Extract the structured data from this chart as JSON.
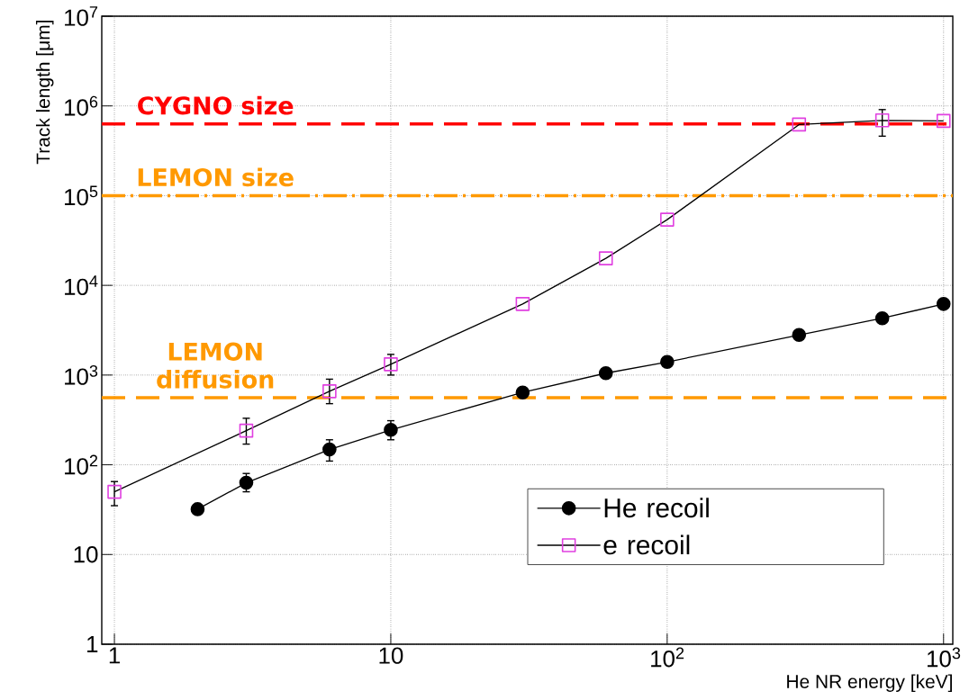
{
  "chart_data": {
    "type": "line",
    "xlabel": "He NR energy [keV]",
    "ylabel": "Track length [μm]",
    "log": "xy",
    "xlim": [
      0.9,
      1080
    ],
    "ylim": [
      1,
      10000000
    ],
    "xticks": [
      1,
      10,
      {
        "value": 100,
        "label": "10$^{2}$"
      },
      {
        "value": 1000,
        "label": "10$^{3}$"
      }
    ],
    "yticks": [
      1,
      10,
      {
        "value": 100,
        "label": "10$^{2}$"
      },
      {
        "value": 1000,
        "label": "10$^{3}$"
      },
      {
        "value": 10000,
        "label": "10$^{4}$"
      },
      {
        "value": 100000,
        "label": "10$^{5}$"
      },
      {
        "value": 1000000,
        "label": "10$^{6}$"
      },
      {
        "value": 10000000,
        "label": "10$^{7}$"
      }
    ],
    "grid": true,
    "legend": "bottom right",
    "series": [
      {
        "name": "He recoil",
        "color": "#000000",
        "marker": "circle",
        "x": [
          2,
          3,
          6,
          10,
          30,
          60,
          100,
          300,
          600,
          1000
        ],
        "values": [
          32,
          63,
          148,
          245,
          640,
          1050,
          1400,
          2800,
          4300,
          6200
        ],
        "errors": [
          null,
          [
            50,
            80
          ],
          [
            110,
            190
          ],
          [
            190,
            310
          ],
          null,
          null,
          null,
          null,
          null,
          null
        ]
      },
      {
        "name": "e recoil",
        "color": "#e040e0",
        "marker": "square",
        "x": [
          1,
          3,
          6,
          10,
          30,
          60,
          100,
          300,
          600,
          1000
        ],
        "values": [
          50,
          240,
          660,
          1320,
          6200,
          20000,
          54000,
          620000,
          690000,
          680000
        ],
        "errors": [
          [
            35,
            65
          ],
          [
            170,
            330
          ],
          [
            480,
            900
          ],
          [
            1000,
            1700
          ],
          null,
          null,
          null,
          null,
          [
            460000,
            910000
          ],
          null
        ]
      }
    ],
    "ref_lines": [
      {
        "axis": "y",
        "value": 630000,
        "label": "CYGNO size",
        "color": "#ff0000",
        "line_style": "dashed"
      },
      {
        "axis": "y",
        "value": 100000,
        "label": "LEMON size",
        "color": "#ff9900",
        "line_style": "dashdot"
      },
      {
        "axis": "y",
        "value": 560,
        "label": "LEMON diffusion",
        "color": "#ff9900",
        "line_style": "dashed"
      }
    ]
  }
}
